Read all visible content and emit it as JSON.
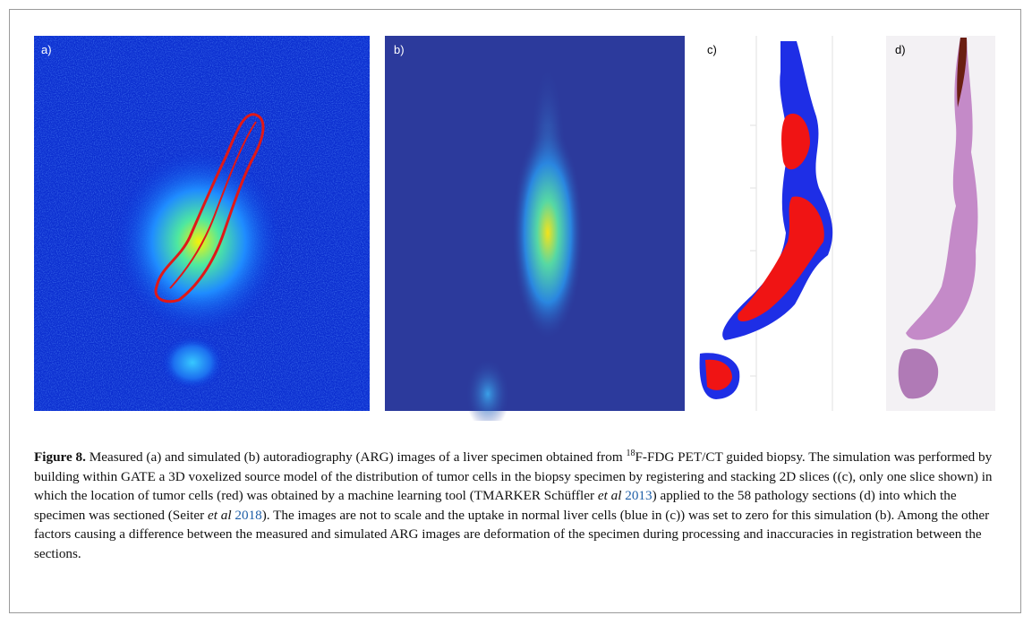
{
  "panels": [
    {
      "label": "a)"
    },
    {
      "label": "b)"
    },
    {
      "label": "c)"
    },
    {
      "label": "d)"
    }
  ],
  "caption": {
    "label": "Figure 8.",
    "text_1": " Measured (a) and simulated (b) autoradiography (ARG) images of a liver specimen obtained from ",
    "sup": "18",
    "text_2": "F-FDG PET/CT guided biopsy. The simulation was performed by building within GATE a 3D voxelized source model of the distribution of tumor cells in the biopsy specimen by registering and stacking 2D slices ((c), only one slice shown) in which the location of tumor cells (red) was obtained by a machine learning tool (TMARKER Schüffler ",
    "em_1": "et al",
    "ref_1": "2013",
    "text_3": ") applied to the 58 pathology sections (d) into which the specimen was sectioned (Seiter ",
    "em_2": "et al",
    "ref_2": "2018",
    "text_4": "). The images are not to scale and the uptake in normal liver cells (blue in (c)) was set to zero for this simulation (b). Among the other factors causing a difference between the measured and simulated ARG images are deformation of the specimen during processing and inaccuracies in registration between the sections."
  }
}
